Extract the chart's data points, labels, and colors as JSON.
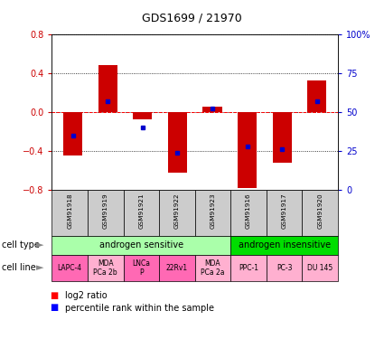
{
  "title": "GDS1699 / 21970",
  "samples": [
    "GSM91918",
    "GSM91919",
    "GSM91921",
    "GSM91922",
    "GSM91923",
    "GSM91916",
    "GSM91917",
    "GSM91920"
  ],
  "log2_ratio": [
    -0.45,
    0.48,
    -0.08,
    -0.62,
    0.05,
    -0.78,
    -0.52,
    0.32
  ],
  "percentile_rank": [
    35,
    57,
    40,
    24,
    52,
    28,
    26,
    57
  ],
  "ylim": [
    -0.8,
    0.8
  ],
  "yticks_left": [
    -0.8,
    -0.4,
    0.0,
    0.4,
    0.8
  ],
  "yticks_right": [
    0,
    25,
    50,
    75,
    100
  ],
  "cell_type_groups": [
    {
      "label": "androgen sensitive",
      "start": 0,
      "end": 5,
      "color": "#AAFFAA"
    },
    {
      "label": "androgen insensitive",
      "start": 5,
      "end": 8,
      "color": "#00DD00"
    }
  ],
  "cell_lines": [
    {
      "label": "LAPC-4",
      "col": 0
    },
    {
      "label": "MDA\nPCa 2b",
      "col": 1
    },
    {
      "label": "LNCa\nP",
      "col": 2
    },
    {
      "label": "22Rv1",
      "col": 3
    },
    {
      "label": "MDA\nPCa 2a",
      "col": 4
    },
    {
      "label": "PPC-1",
      "col": 5
    },
    {
      "label": "PC-3",
      "col": 6
    },
    {
      "label": "DU 145",
      "col": 7
    }
  ],
  "cell_line_colors": [
    "#FF69B4",
    "#FFB0D0",
    "#FF69B4",
    "#FF69B4",
    "#FFB0D0",
    "#FFB0D0",
    "#FFB0D0",
    "#FFB0D0"
  ],
  "bar_color": "#CC0000",
  "dot_color": "#0000CC",
  "sample_bg_color": "#CCCCCC",
  "legend_red_label": "log2 ratio",
  "legend_blue_label": "percentile rank within the sample",
  "left_color": "#CC0000",
  "right_color": "#0000CC"
}
